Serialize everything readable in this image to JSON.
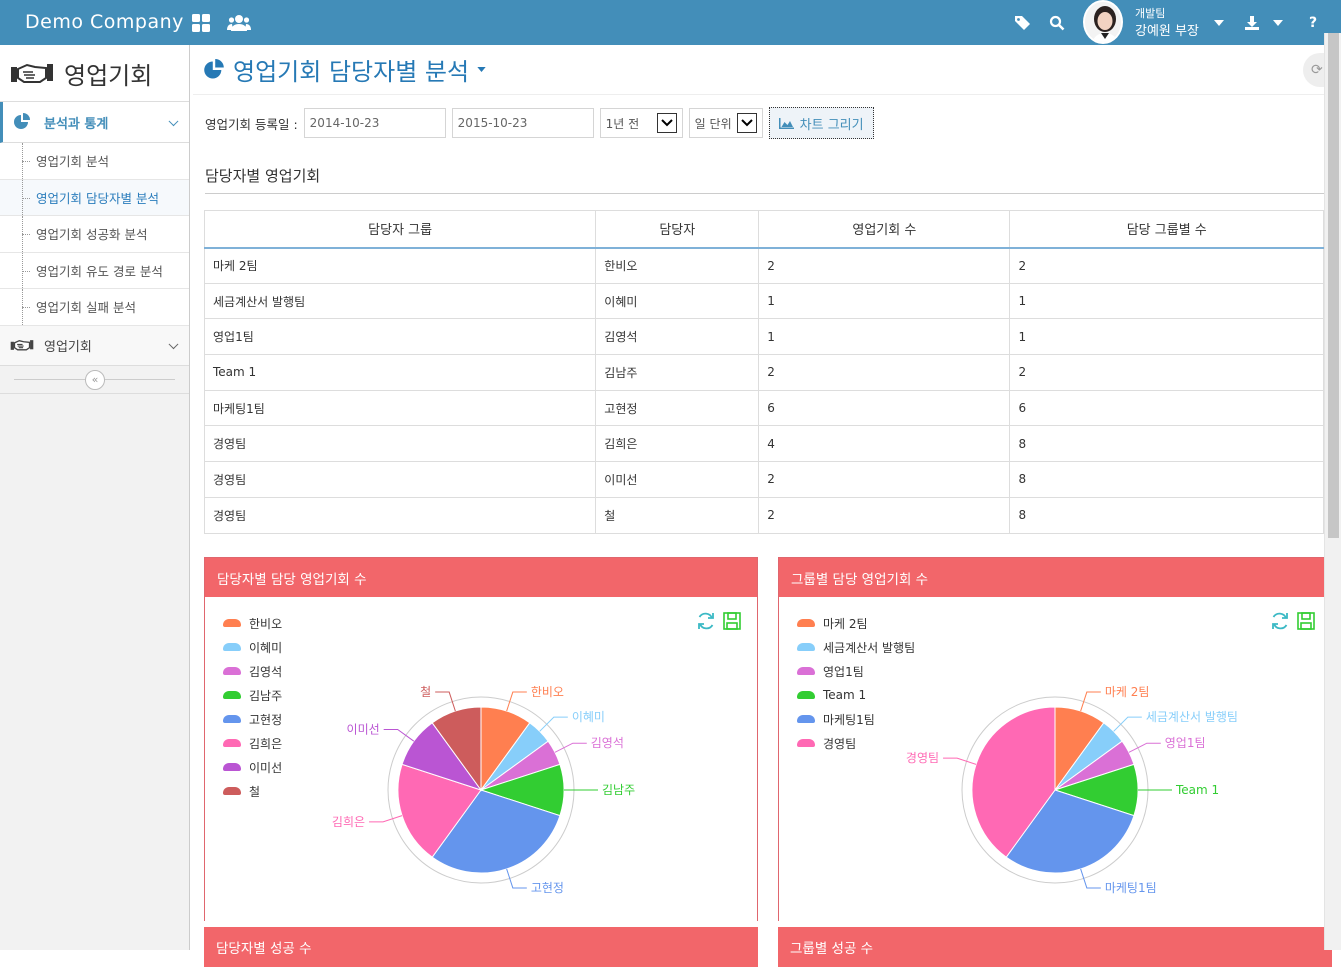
{
  "topbar": {
    "brand": "Demo Company",
    "user_dept": "개발팀",
    "user_name": "강예원 부장"
  },
  "sidebar": {
    "title": "영업기회",
    "section": "분석과 통계",
    "items": [
      {
        "label": "영업기회 분석",
        "active": false
      },
      {
        "label": "영업기회 담당자별 분석",
        "active": true
      },
      {
        "label": "영업기회 성공화 분석",
        "active": false
      },
      {
        "label": "영업기회 유도 경로 분석",
        "active": false
      },
      {
        "label": "영업기회 실패 분석",
        "active": false
      }
    ],
    "section2": "영업기회"
  },
  "page": {
    "title": "영업기회 담당자별 분석"
  },
  "filters": {
    "label": "영업기회 등록일 :",
    "start": "2014-10-23",
    "end": "2015-10-23",
    "range": "1년 전",
    "unit": "일 단위",
    "button": "차트 그리기"
  },
  "section_title": "담당자별 영업기회",
  "table": {
    "headers": [
      "담당자 그룹",
      "담당자",
      "영업기회 수",
      "담당 그룹별 수"
    ],
    "rows": [
      [
        "마케 2팀",
        "한비오",
        "2",
        "2"
      ],
      [
        "세금계산서 발행팀",
        "이혜미",
        "1",
        "1"
      ],
      [
        "영업1팀",
        "김영석",
        "1",
        "1"
      ],
      [
        "Team 1",
        "김남주",
        "2",
        "2"
      ],
      [
        "마케팅1팀",
        "고현정",
        "6",
        "6"
      ],
      [
        "경영팀",
        "김희은",
        "4",
        "8"
      ],
      [
        "경영팀",
        "이미선",
        "2",
        "8"
      ],
      [
        "경영팀",
        "철",
        "2",
        "8"
      ]
    ]
  },
  "panels": {
    "p1_title": "담당자별 담당 영업기회 수",
    "p2_title": "그룹별 담당 영업기회 수",
    "p3_title": "담당자별 성공 수",
    "p4_title": "그룹별 성공 수"
  },
  "chart_data": [
    {
      "type": "pie",
      "title": "담당자별 담당 영업기회 수",
      "legend_position": "top-left",
      "categories": [
        "한비오",
        "이혜미",
        "김영석",
        "김남주",
        "고현정",
        "김희은",
        "이미선",
        "철"
      ],
      "values": [
        2,
        1,
        1,
        2,
        6,
        4,
        2,
        2
      ],
      "colors": [
        "#ff7f50",
        "#87cefa",
        "#da70d6",
        "#32cd32",
        "#6495ed",
        "#ff69b4",
        "#ba55d3",
        "#cd5c5c"
      ]
    },
    {
      "type": "pie",
      "title": "그룹별 담당 영업기회 수",
      "legend_position": "top-left",
      "categories": [
        "마케 2팀",
        "세금계산서 발행팀",
        "영업1팀",
        "Team 1",
        "마케팅1팀",
        "경영팀"
      ],
      "values": [
        2,
        1,
        1,
        2,
        6,
        8
      ],
      "colors": [
        "#ff7f50",
        "#87cefa",
        "#da70d6",
        "#32cd32",
        "#6495ed",
        "#ff69b4"
      ]
    }
  ]
}
